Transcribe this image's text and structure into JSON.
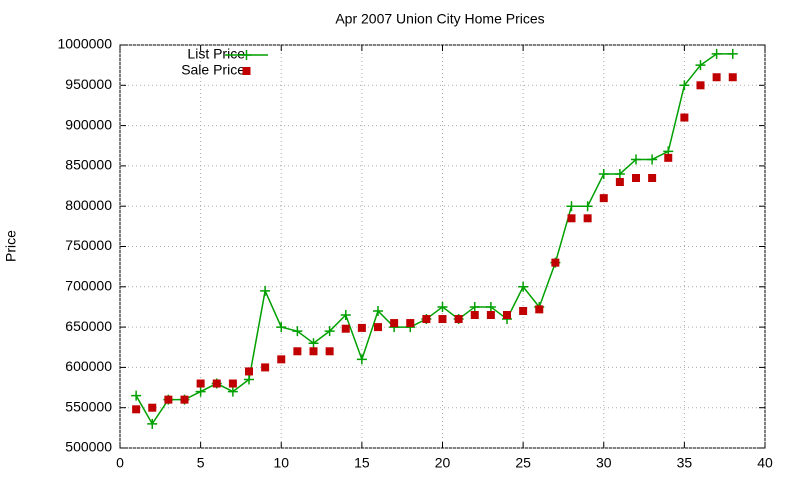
{
  "chart_data": {
    "type": "line",
    "title": "Apr 2007 Union City Home Prices",
    "y_label": "Price",
    "x": [
      1,
      2,
      3,
      4,
      5,
      6,
      7,
      8,
      9,
      10,
      11,
      12,
      13,
      14,
      15,
      16,
      17,
      18,
      19,
      20,
      21,
      22,
      23,
      24,
      25,
      26,
      27,
      28,
      29,
      30,
      31,
      32,
      33,
      34,
      35,
      36,
      37,
      38
    ],
    "series": [
      {
        "name": "List Price",
        "color": "#00a000",
        "style": "linespoints",
        "values": [
          565000,
          530000,
          560000,
          560000,
          570000,
          580000,
          570000,
          585000,
          695000,
          650000,
          645000,
          630000,
          645000,
          665000,
          610000,
          670000,
          650000,
          650000,
          660000,
          675000,
          660000,
          675000,
          675000,
          660000,
          700000,
          675000,
          730000,
          800000,
          800000,
          840000,
          840000,
          858000,
          858000,
          868000,
          950000,
          975000,
          989000,
          989000
        ]
      },
      {
        "name": "Sale Price",
        "color": "#c00000",
        "style": "points",
        "values": [
          548000,
          550000,
          560000,
          560000,
          580000,
          580000,
          580000,
          595000,
          600000,
          610000,
          620000,
          620000,
          620000,
          648000,
          649000,
          650000,
          655000,
          655000,
          660000,
          660000,
          660000,
          665000,
          665000,
          665000,
          670000,
          672000,
          730000,
          785000,
          785000,
          810000,
          830000,
          835000,
          835000,
          860000,
          910000,
          950000,
          960000,
          960000
        ]
      }
    ],
    "xlim": [
      0,
      40
    ],
    "xticks": [
      0,
      5,
      10,
      15,
      20,
      25,
      30,
      35,
      40
    ],
    "ylim": [
      500000,
      1000000
    ],
    "yticks": [
      500000,
      550000,
      600000,
      650000,
      700000,
      750000,
      800000,
      850000,
      900000,
      950000,
      1000000
    ],
    "grid": true,
    "legend": "top-left"
  }
}
